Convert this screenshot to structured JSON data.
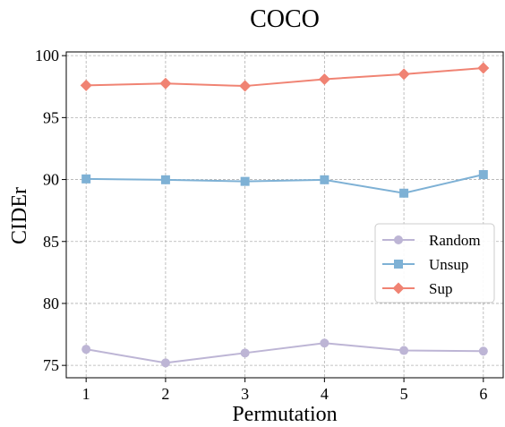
{
  "chart_data": {
    "type": "line",
    "title": "COCO",
    "xlabel": "Permutation",
    "ylabel": "CIDEr",
    "x": [
      1,
      2,
      3,
      4,
      5,
      6
    ],
    "xticks": [
      "1",
      "2",
      "3",
      "4",
      "5",
      "6"
    ],
    "yticks": [
      "75",
      "80",
      "85",
      "90",
      "95",
      "100"
    ],
    "xlim": [
      0.75,
      6.25
    ],
    "ylim": [
      74,
      100.3
    ],
    "grid": true,
    "legend_position": "center-right",
    "series": [
      {
        "name": "Random",
        "color": "#BDB5D5",
        "marker": "circle",
        "values": [
          76.3,
          75.2,
          76.0,
          76.8,
          76.2,
          76.15
        ]
      },
      {
        "name": "Unsup",
        "color": "#7EB1D5",
        "marker": "square",
        "values": [
          90.05,
          89.98,
          89.85,
          89.98,
          88.9,
          90.4
        ]
      },
      {
        "name": "Sup",
        "color": "#F08373",
        "marker": "diamond",
        "values": [
          97.6,
          97.75,
          97.55,
          98.1,
          98.5,
          99.0
        ]
      }
    ]
  }
}
